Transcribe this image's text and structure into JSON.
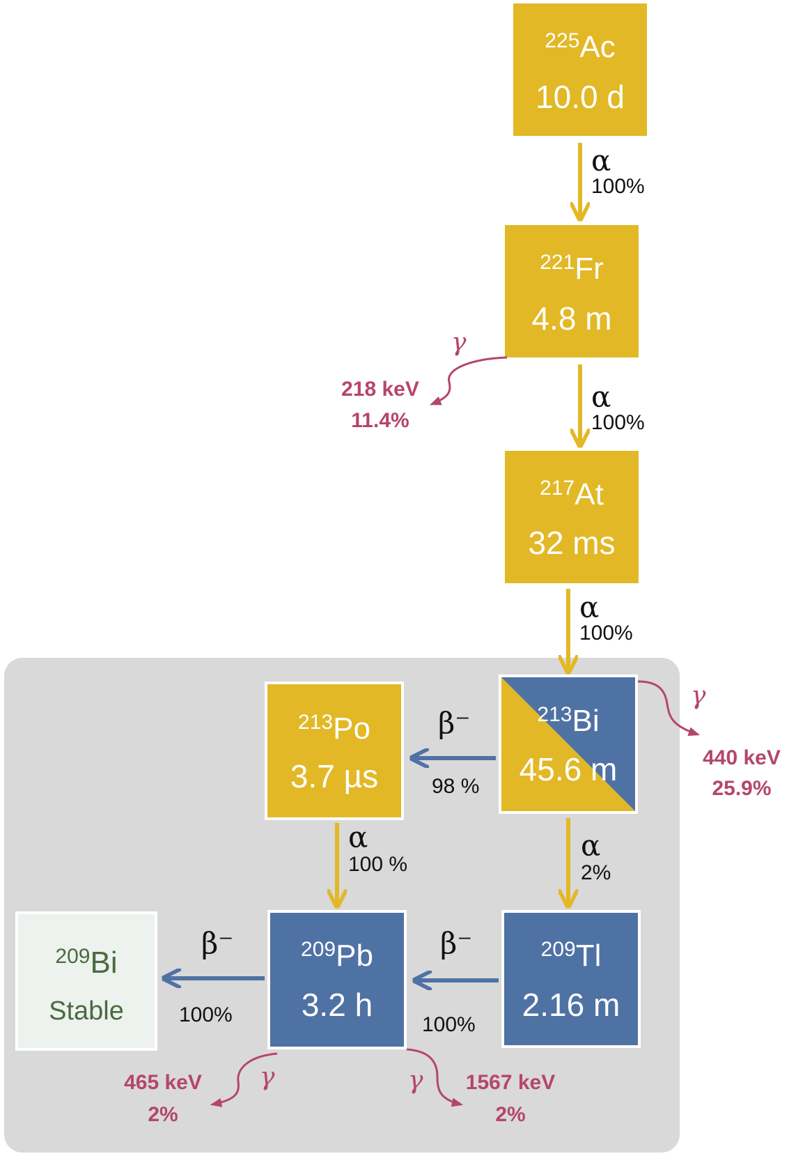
{
  "colors": {
    "alpha": "#e2b826",
    "beta": "#4f72a4",
    "gamma": "#b5456e",
    "region": "#d9d9d9",
    "stable_fill": "#edf2ee",
    "stable_text": "#4a6a3f"
  },
  "nuclides": {
    "ac225": {
      "mass": "225",
      "symbol": "Ac",
      "halflife": "10.0 d"
    },
    "fr221": {
      "mass": "221",
      "symbol": "Fr",
      "halflife": "4.8 m"
    },
    "at217": {
      "mass": "217",
      "symbol": "At",
      "halflife": "32 ms"
    },
    "bi213": {
      "mass": "213",
      "symbol": "Bi",
      "halflife": "45.6 m"
    },
    "po213": {
      "mass": "213",
      "symbol": "Po",
      "halflife": "3.7 µs"
    },
    "tl209": {
      "mass": "209",
      "symbol": "Tl",
      "halflife": "2.16 m"
    },
    "pb209": {
      "mass": "209",
      "symbol": "Pb",
      "halflife": "3.2 h"
    },
    "bi209": {
      "mass": "209",
      "symbol": "Bi",
      "halflife": "Stable"
    }
  },
  "decays": {
    "ac_fr": {
      "mode": "α",
      "pct": "100%"
    },
    "fr_at": {
      "mode": "α",
      "pct": "100%"
    },
    "at_bi": {
      "mode": "α",
      "pct": "100%"
    },
    "bi_po": {
      "mode": "β⁻",
      "pct": "98 %"
    },
    "bi_tl": {
      "mode": "α",
      "pct": "2%"
    },
    "po_pb": {
      "mode": "α",
      "pct": "100 %"
    },
    "tl_pb": {
      "mode": "β⁻",
      "pct": "100%"
    },
    "pb_bi": {
      "mode": "β⁻",
      "pct": "100%"
    }
  },
  "gammas": {
    "fr": {
      "symbol": "γ",
      "energy": "218 keV",
      "pct": "11.4%"
    },
    "bi": {
      "symbol": "γ",
      "energy": "440 keV",
      "pct": "25.9%"
    },
    "pb_left": {
      "symbol": "γ",
      "energy": "465 keV",
      "pct": "2%"
    },
    "pb_right": {
      "symbol": "γ",
      "energy": "1567 keV",
      "pct": "2%"
    }
  }
}
